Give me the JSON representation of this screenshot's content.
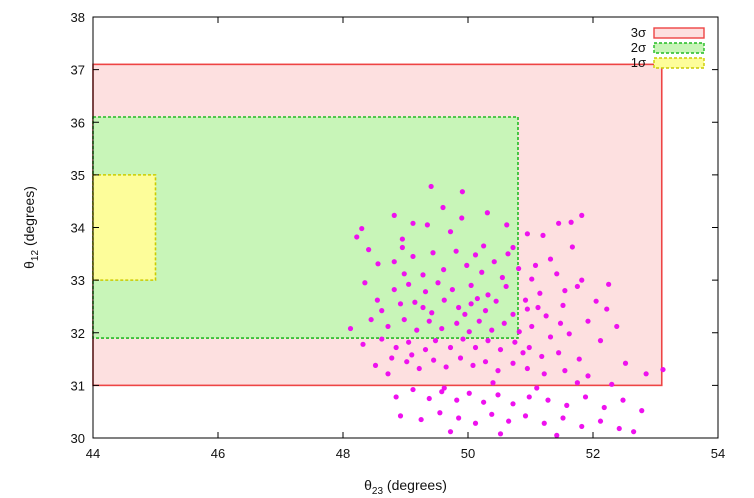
{
  "chart_data": {
    "type": "scatter",
    "title": "",
    "xlabel": "θ23 (degrees)",
    "xlabel_main": "θ",
    "xlabel_sub": "23",
    "xlabel_rest": " (degrees)",
    "ylabel": "θ12 (degrees)",
    "ylabel_main": "θ",
    "ylabel_sub": "12",
    "ylabel_rest": " (degrees)",
    "xlim": [
      44,
      54
    ],
    "ylim": [
      30,
      38
    ],
    "x_ticks": [
      "44",
      "46",
      "48",
      "50",
      "52",
      "54"
    ],
    "y_ticks": [
      "30",
      "31",
      "32",
      "33",
      "34",
      "35",
      "36",
      "37",
      "38"
    ],
    "grid": false,
    "legend_position": "top-right",
    "regions": [
      {
        "name": "3σ",
        "x": [
          44,
          53.1
        ],
        "y": [
          31.0,
          37.1
        ],
        "fill": "#fde0e0",
        "stroke": "#ee4444",
        "dashed": false
      },
      {
        "name": "2σ",
        "x": [
          44,
          50.8
        ],
        "y": [
          31.9,
          36.1
        ],
        "fill": "#c8f5b8",
        "stroke": "#22bb22",
        "dashed": true
      },
      {
        "name": "1σ",
        "x": [
          44,
          45.0
        ],
        "y": [
          33.0,
          35.0
        ],
        "fill": "#fdfd9a",
        "stroke": "#cccc00",
        "dashed": true
      }
    ],
    "point_color": "#ee11ee",
    "points": [
      [
        49.41,
        34.78
      ],
      [
        49.91,
        34.68
      ],
      [
        48.82,
        34.23
      ],
      [
        49.12,
        34.08
      ],
      [
        48.3,
        33.98
      ],
      [
        48.95,
        33.78
      ],
      [
        51.82,
        34.23
      ],
      [
        51.45,
        34.08
      ],
      [
        49.6,
        34.38
      ],
      [
        50.31,
        34.28
      ],
      [
        48.41,
        33.58
      ],
      [
        49.9,
        34.18
      ],
      [
        50.25,
        33.65
      ],
      [
        50.95,
        33.88
      ],
      [
        51.2,
        33.85
      ],
      [
        49.35,
        34.05
      ],
      [
        48.56,
        33.31
      ],
      [
        49.12,
        33.45
      ],
      [
        49.44,
        33.52
      ],
      [
        49.81,
        33.55
      ],
      [
        50.12,
        33.48
      ],
      [
        50.42,
        33.35
      ],
      [
        50.64,
        33.5
      ],
      [
        51.08,
        33.28
      ],
      [
        51.32,
        33.4
      ],
      [
        51.67,
        33.63
      ],
      [
        48.82,
        33.35
      ],
      [
        48.98,
        33.12
      ],
      [
        49.28,
        33.1
      ],
      [
        49.61,
        33.2
      ],
      [
        49.98,
        33.28
      ],
      [
        50.22,
        33.15
      ],
      [
        50.55,
        33.05
      ],
      [
        50.81,
        33.22
      ],
      [
        51.02,
        33.02
      ],
      [
        51.42,
        33.12
      ],
      [
        51.82,
        33.0
      ],
      [
        52.05,
        32.6
      ],
      [
        48.35,
        32.95
      ],
      [
        48.55,
        32.62
      ],
      [
        48.82,
        32.82
      ],
      [
        49.05,
        32.92
      ],
      [
        49.32,
        32.78
      ],
      [
        49.52,
        32.95
      ],
      [
        49.75,
        32.82
      ],
      [
        50.05,
        32.9
      ],
      [
        50.32,
        32.72
      ],
      [
        50.61,
        32.88
      ],
      [
        50.92,
        32.62
      ],
      [
        51.15,
        32.75
      ],
      [
        51.52,
        32.52
      ],
      [
        51.75,
        32.88
      ],
      [
        52.22,
        32.45
      ],
      [
        48.62,
        32.42
      ],
      [
        48.92,
        32.55
      ],
      [
        49.15,
        32.58
      ],
      [
        49.42,
        32.38
      ],
      [
        49.62,
        32.62
      ],
      [
        49.85,
        32.48
      ],
      [
        50.05,
        32.55
      ],
      [
        50.28,
        32.42
      ],
      [
        50.45,
        32.6
      ],
      [
        50.72,
        32.35
      ],
      [
        50.95,
        32.45
      ],
      [
        51.25,
        32.32
      ],
      [
        51.48,
        32.18
      ],
      [
        51.92,
        32.22
      ],
      [
        52.38,
        32.12
      ],
      [
        48.12,
        32.08
      ],
      [
        48.45,
        32.25
      ],
      [
        48.72,
        32.12
      ],
      [
        48.98,
        32.25
      ],
      [
        49.18,
        32.05
      ],
      [
        49.38,
        32.22
      ],
      [
        49.58,
        32.08
      ],
      [
        49.82,
        32.18
      ],
      [
        50.02,
        32.02
      ],
      [
        50.18,
        32.22
      ],
      [
        50.38,
        32.05
      ],
      [
        50.58,
        32.18
      ],
      [
        50.82,
        32.02
      ],
      [
        51.02,
        32.12
      ],
      [
        51.32,
        31.92
      ],
      [
        51.62,
        31.98
      ],
      [
        52.12,
        31.85
      ],
      [
        48.32,
        31.78
      ],
      [
        48.62,
        31.88
      ],
      [
        48.85,
        31.72
      ],
      [
        49.05,
        31.82
      ],
      [
        49.32,
        31.68
      ],
      [
        49.48,
        31.85
      ],
      [
        49.72,
        31.72
      ],
      [
        49.92,
        31.88
      ],
      [
        50.12,
        31.72
      ],
      [
        50.32,
        31.85
      ],
      [
        50.52,
        31.68
      ],
      [
        50.75,
        31.82
      ],
      [
        50.98,
        31.72
      ],
      [
        51.18,
        31.55
      ],
      [
        51.45,
        31.62
      ],
      [
        51.78,
        31.5
      ],
      [
        52.52,
        31.42
      ],
      [
        48.52,
        31.38
      ],
      [
        48.78,
        31.52
      ],
      [
        49.02,
        31.45
      ],
      [
        49.22,
        31.32
      ],
      [
        49.45,
        31.48
      ],
      [
        49.65,
        31.35
      ],
      [
        49.88,
        31.52
      ],
      [
        50.08,
        31.38
      ],
      [
        50.28,
        31.45
      ],
      [
        50.48,
        31.28
      ],
      [
        50.72,
        31.42
      ],
      [
        50.95,
        31.32
      ],
      [
        51.22,
        31.22
      ],
      [
        51.55,
        31.28
      ],
      [
        51.92,
        31.18
      ],
      [
        52.85,
        31.22
      ],
      [
        53.12,
        31.3
      ],
      [
        48.85,
        30.78
      ],
      [
        49.12,
        30.92
      ],
      [
        49.38,
        30.75
      ],
      [
        49.58,
        30.88
      ],
      [
        49.82,
        30.72
      ],
      [
        50.02,
        30.85
      ],
      [
        50.25,
        30.68
      ],
      [
        50.48,
        30.82
      ],
      [
        50.72,
        30.65
      ],
      [
        50.98,
        30.78
      ],
      [
        51.28,
        30.72
      ],
      [
        51.58,
        30.62
      ],
      [
        51.88,
        30.78
      ],
      [
        52.18,
        30.58
      ],
      [
        52.48,
        30.72
      ],
      [
        52.78,
        30.52
      ],
      [
        48.92,
        30.42
      ],
      [
        49.25,
        30.35
      ],
      [
        49.55,
        30.48
      ],
      [
        49.85,
        30.38
      ],
      [
        50.12,
        30.28
      ],
      [
        50.38,
        30.45
      ],
      [
        50.65,
        30.32
      ],
      [
        50.92,
        30.42
      ],
      [
        51.22,
        30.28
      ],
      [
        51.52,
        30.38
      ],
      [
        51.82,
        30.22
      ],
      [
        52.12,
        30.32
      ],
      [
        52.42,
        30.18
      ],
      [
        49.72,
        30.12
      ],
      [
        50.52,
        30.08
      ],
      [
        51.42,
        30.05
      ],
      [
        52.65,
        30.12
      ],
      [
        48.22,
        33.82
      ],
      [
        49.72,
        33.92
      ],
      [
        50.72,
        33.62
      ],
      [
        51.55,
        32.8
      ],
      [
        49.95,
        32.35
      ],
      [
        50.15,
        32.65
      ],
      [
        49.28,
        32.48
      ],
      [
        50.88,
        31.62
      ],
      [
        51.12,
        32.48
      ],
      [
        49.1,
        31.58
      ],
      [
        48.95,
        33.62
      ],
      [
        50.62,
        34.05
      ],
      [
        51.65,
        34.1
      ],
      [
        52.25,
        32.92
      ],
      [
        48.72,
        31.22
      ],
      [
        51.75,
        31.05
      ],
      [
        50.4,
        31.05
      ],
      [
        49.62,
        30.95
      ],
      [
        51.1,
        30.95
      ],
      [
        52.3,
        31.02
      ]
    ]
  }
}
